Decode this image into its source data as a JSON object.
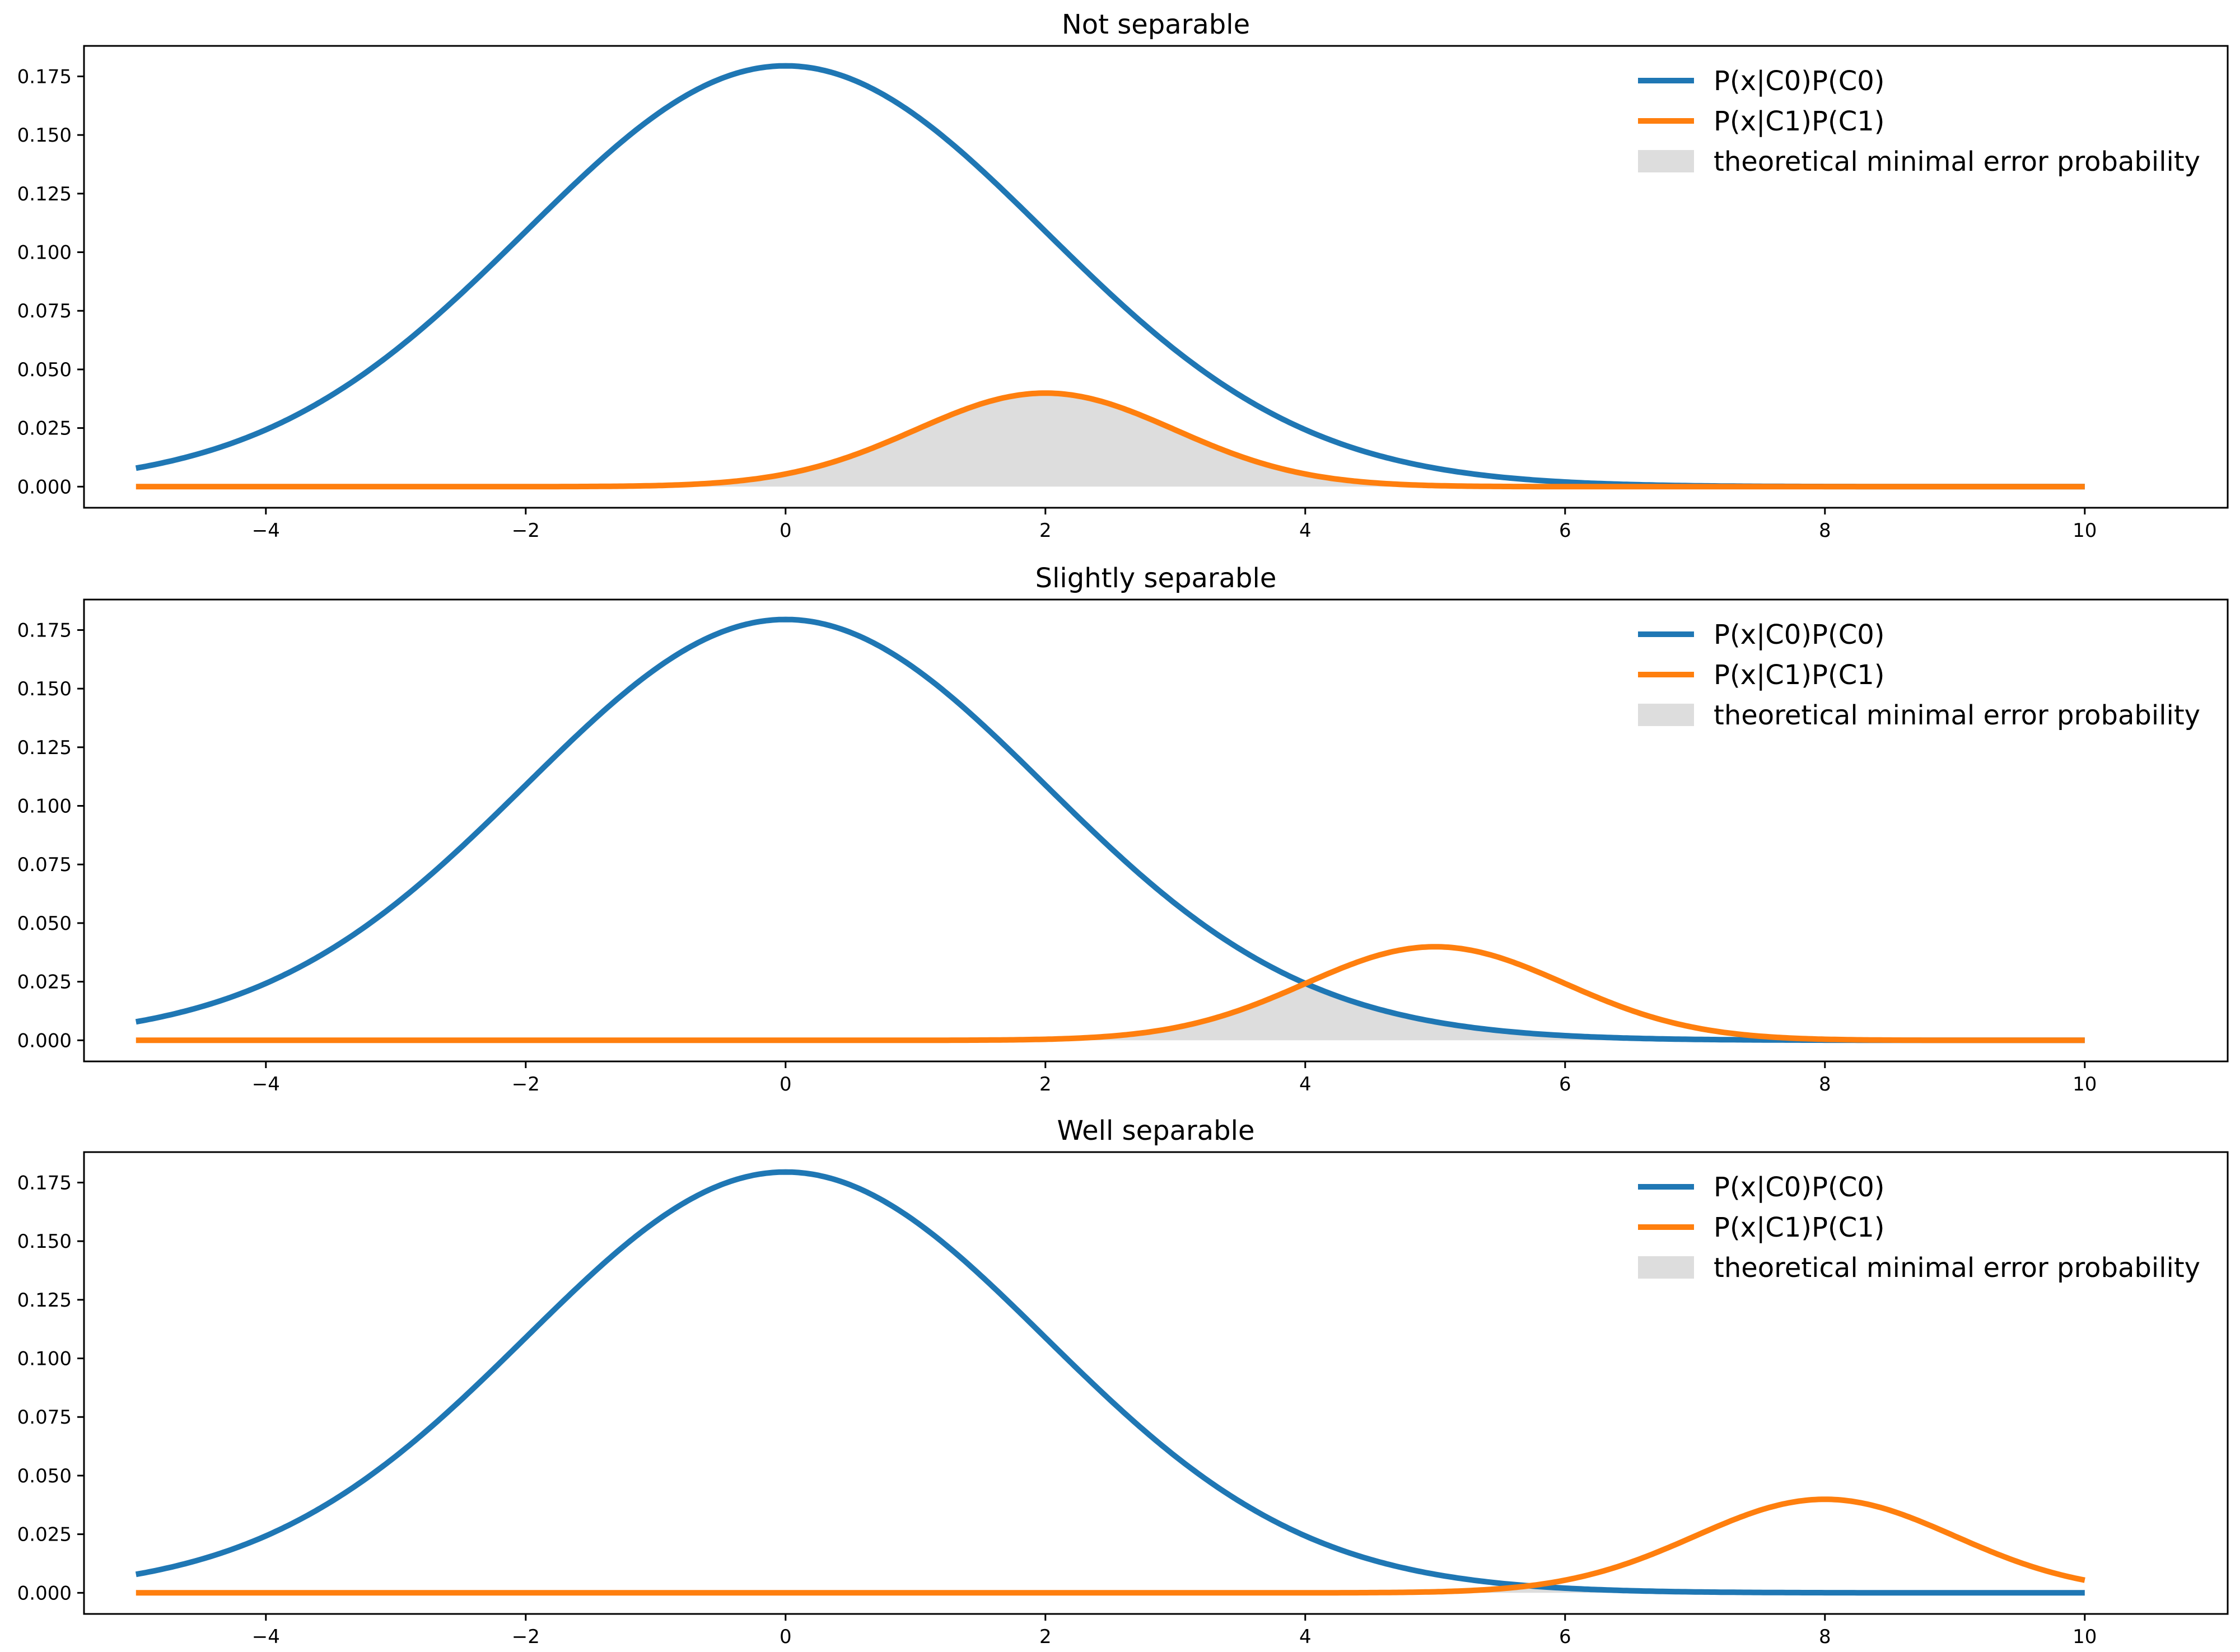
{
  "chart_data": [
    {
      "type": "line",
      "title": "Not separable",
      "xlim": [
        -5.4,
        11.1
      ],
      "ylim": [
        -0.009,
        0.188
      ],
      "xticks": [
        -4,
        -2,
        0,
        2,
        4,
        6,
        8,
        10
      ],
      "xtick_labels": [
        "−4",
        "−2",
        "0",
        "2",
        "4",
        "6",
        "8",
        "10"
      ],
      "yticks": [
        0.0,
        0.025,
        0.05,
        0.075,
        0.1,
        0.125,
        0.15,
        0.175
      ],
      "ytick_labels": [
        "0.000",
        "0.025",
        "0.050",
        "0.075",
        "0.100",
        "0.125",
        "0.150",
        "0.175"
      ],
      "x_range": [
        -5,
        10
      ],
      "series": [
        {
          "name": "P(x|C0)P(C0)",
          "mean": 0,
          "sd": 2,
          "peak": 0.1795,
          "color": "#1f77b4"
        },
        {
          "name": "P(x|C1)P(C1)",
          "mean": 2,
          "sd": 1,
          "peak": 0.0399,
          "color": "#ff7f0e"
        }
      ],
      "fill": {
        "name": "theoretical minimal error probability",
        "color": "#dddddd"
      },
      "legend_position": "top-right"
    },
    {
      "type": "line",
      "title": "Slightly separable",
      "xlim": [
        -5.4,
        11.1
      ],
      "ylim": [
        -0.009,
        0.188
      ],
      "xticks": [
        -4,
        -2,
        0,
        2,
        4,
        6,
        8,
        10
      ],
      "xtick_labels": [
        "−4",
        "−2",
        "0",
        "2",
        "4",
        "6",
        "8",
        "10"
      ],
      "yticks": [
        0.0,
        0.025,
        0.05,
        0.075,
        0.1,
        0.125,
        0.15,
        0.175
      ],
      "ytick_labels": [
        "0.000",
        "0.025",
        "0.050",
        "0.075",
        "0.100",
        "0.125",
        "0.150",
        "0.175"
      ],
      "x_range": [
        -5,
        10
      ],
      "series": [
        {
          "name": "P(x|C0)P(C0)",
          "mean": 0,
          "sd": 2,
          "peak": 0.1795,
          "color": "#1f77b4"
        },
        {
          "name": "P(x|C1)P(C1)",
          "mean": 5,
          "sd": 1,
          "peak": 0.0399,
          "color": "#ff7f0e"
        }
      ],
      "fill": {
        "name": "theoretical minimal error probability",
        "color": "#dddddd"
      },
      "legend_position": "top-right"
    },
    {
      "type": "line",
      "title": "Well separable",
      "xlim": [
        -5.4,
        11.1
      ],
      "ylim": [
        -0.009,
        0.188
      ],
      "xticks": [
        -4,
        -2,
        0,
        2,
        4,
        6,
        8,
        10
      ],
      "xtick_labels": [
        "−4",
        "−2",
        "0",
        "2",
        "4",
        "6",
        "8",
        "10"
      ],
      "yticks": [
        0.0,
        0.025,
        0.05,
        0.075,
        0.1,
        0.125,
        0.15,
        0.175
      ],
      "ytick_labels": [
        "0.000",
        "0.025",
        "0.050",
        "0.075",
        "0.100",
        "0.125",
        "0.150",
        "0.175"
      ],
      "x_range": [
        -5,
        10
      ],
      "series": [
        {
          "name": "P(x|C0)P(C0)",
          "mean": 0,
          "sd": 2,
          "peak": 0.1795,
          "color": "#1f77b4"
        },
        {
          "name": "P(x|C1)P(C1)",
          "mean": 8,
          "sd": 1,
          "peak": 0.0399,
          "color": "#ff7f0e"
        }
      ],
      "fill": {
        "name": "theoretical minimal error probability",
        "color": "#dddddd"
      },
      "legend_position": "top-right"
    }
  ]
}
